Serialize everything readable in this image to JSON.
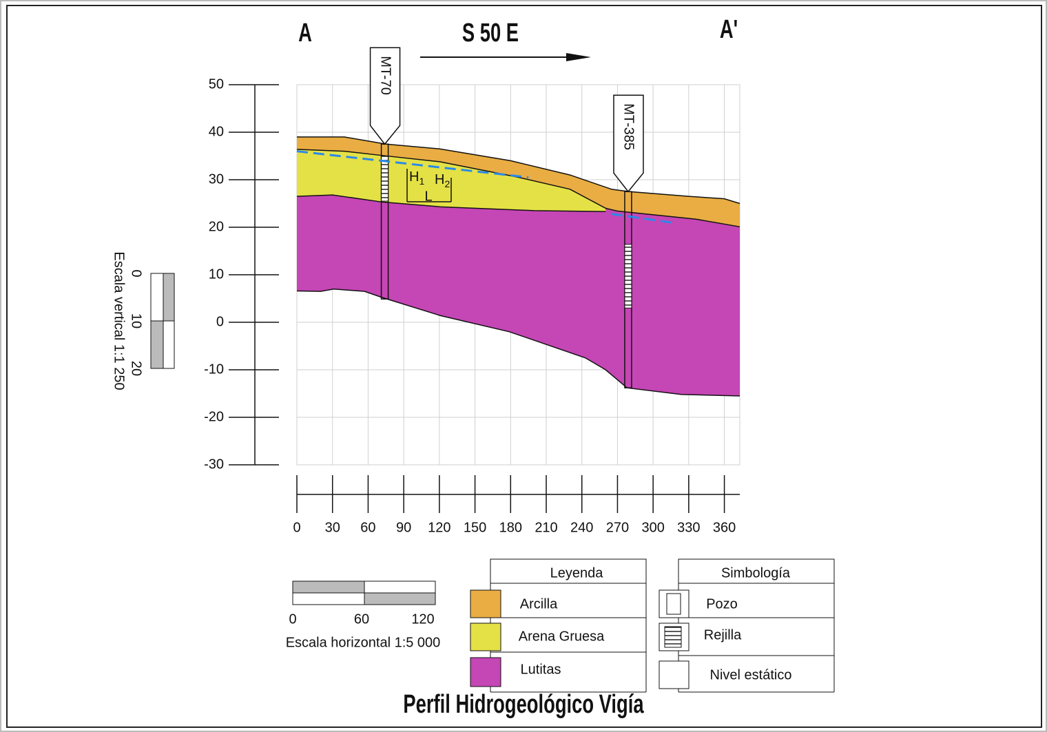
{
  "title": "Perfil Hidrogeológico Vigía",
  "header": {
    "left": "A",
    "right": "A'",
    "direction": "S 50 E"
  },
  "profile": {
    "xlim": [
      0,
      373
    ],
    "ylim": [
      -30,
      50
    ],
    "xticks": [
      0,
      30,
      60,
      90,
      120,
      150,
      180,
      210,
      240,
      270,
      300,
      330,
      360
    ],
    "yticks": [
      50,
      40,
      30,
      20,
      10,
      0,
      -10,
      -20,
      -30
    ],
    "grid": true,
    "layers": [
      {
        "name": "Lutitas",
        "color": "#c546b5",
        "top": "arcilla_base",
        "bottom": "lutitas_base"
      },
      {
        "name": "Arena Gruesa",
        "color": "#e4e146",
        "top": "arcilla_base",
        "bottom": "lutitas_top"
      },
      {
        "name": "Arcilla",
        "color": "#e9ad43",
        "top": "surface",
        "bottom": "arcilla_base"
      }
    ],
    "boundaries": {
      "surface": {
        "x": [
          0,
          40,
          75,
          120,
          180,
          230,
          265,
          280,
          330,
          360,
          373
        ],
        "y": [
          39,
          39,
          37.5,
          36.5,
          34,
          31,
          28,
          27.5,
          26.5,
          26,
          25
        ]
      },
      "arcilla_base": {
        "x": [
          0,
          40,
          72,
          120,
          185,
          230,
          260,
          270,
          336,
          373
        ],
        "y": [
          36.4,
          36,
          35.1,
          33.8,
          30.6,
          28,
          24,
          23.4,
          21.7,
          20.1
        ]
      },
      "lutitas_top": {
        "x": [
          0,
          30,
          72,
          121,
          200,
          260
        ],
        "y": [
          26.5,
          26.8,
          25.3,
          24.3,
          23.5,
          23.3
        ]
      },
      "lutitas_base": {
        "x": [
          0,
          20,
          31,
          57,
          72,
          121,
          179,
          243,
          260,
          278,
          324,
          373
        ],
        "y": [
          6.6,
          6.5,
          7,
          6.5,
          5.2,
          1.4,
          -2,
          -7.5,
          -10,
          -13.8,
          -15.2,
          -15.5
        ]
      }
    },
    "water_table": [
      {
        "x": [
          0,
          195
        ],
        "y": [
          36,
          30.5
        ]
      },
      {
        "x": [
          265,
          315
        ],
        "y": [
          22.8,
          21
        ]
      }
    ],
    "wells": [
      {
        "name": "MT-70",
        "x": 74,
        "top": 37.5,
        "bottom": 4.9,
        "screen_top": 35,
        "screen_bottom": 25.5
      },
      {
        "name": "MT-385",
        "x": 279,
        "top": 27.5,
        "bottom": -13.8,
        "screen_top": 16.4,
        "screen_bottom": 3
      }
    ],
    "annotation": {
      "h1": "H",
      "h1_sub": "1",
      "h2": "H",
      "h2_sub": "2",
      "l": "L"
    }
  },
  "vertical_scale": {
    "label": "Escala vertical 1:1 250",
    "ticks": [
      0,
      10,
      20
    ]
  },
  "horizontal_scale": {
    "label": "Escala horizontal 1:5 000",
    "ticks": [
      0,
      60,
      120
    ]
  },
  "legend": {
    "title": "Leyenda",
    "items": [
      "Arcilla",
      "Arena Gruesa",
      "Lutitas"
    ]
  },
  "symbology": {
    "title": "Simbología",
    "items": [
      "Pozo",
      "Rejilla",
      "Nivel estático"
    ]
  }
}
